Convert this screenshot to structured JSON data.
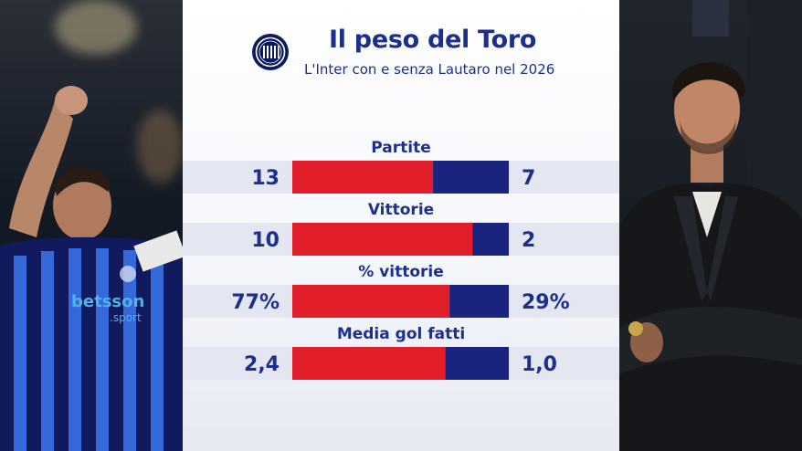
{
  "header": {
    "title": "Il peso del Toro",
    "subtitle": "L'Inter con e senza Lautaro nel 2026",
    "logo_text": "FC IM"
  },
  "colors": {
    "with_color": "#e31e2b",
    "without_color": "#1a237e",
    "row_band": "#e4e7f1",
    "text": "#1d2f8c"
  },
  "chart_data": {
    "type": "bar",
    "orientation": "horizontal-diverging",
    "categories": [
      "Partite",
      "Vittorie",
      "% vittorie",
      "Media gol fatti"
    ],
    "series": [
      {
        "values": [
          13,
          10,
          77,
          2.4
        ]
      },
      {
        "values": [
          7,
          2,
          29,
          1.0
        ]
      }
    ],
    "value_labels_left": [
      "13",
      "10",
      "77%",
      "2,4"
    ],
    "value_labels_right": [
      "7",
      "2",
      "29%",
      "1,0"
    ],
    "legend": "none",
    "grid": false
  },
  "photos": {
    "left": {
      "sponsor": "betsson",
      "sponsor_sub": ".sport"
    }
  }
}
